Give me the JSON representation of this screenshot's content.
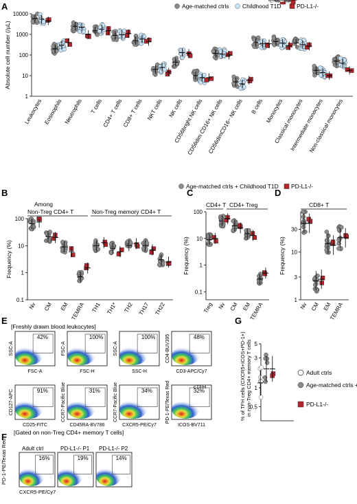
{
  "colors": {
    "ctrl": "#8c8c8c",
    "t1d": "#c6e2f6",
    "pdl1": "#b4242a",
    "adult": "#ffffff"
  },
  "panel_labels": {
    "A": "A",
    "B": "B",
    "C": "C",
    "D": "D",
    "E": "E",
    "F": "F",
    "G": "G"
  },
  "legendA": {
    "ctrl": "Age-matched ctrls",
    "t1d": "Childhood T1D",
    "pdl1": "PD-L1-/-"
  },
  "legendBCD": {
    "combined": "Age-matched ctrls + Childhood T1D",
    "pdl1": "PD-L1-/-"
  },
  "chart_data": [
    {
      "panel": "A",
      "type": "scatter",
      "scale": "log",
      "ylim": [
        1,
        10000
      ],
      "ylabel": "Absolute cell number (/µL)",
      "yticks": [
        "1",
        "10",
        "100",
        "1000",
        "10000"
      ],
      "categories": [
        "Leukocytes",
        "Eosinophils",
        "Neutrophils",
        "T cells",
        "CD4+ T cells",
        "CD8+ T cells",
        "NKT cells",
        "NK cells",
        "CD56bright NK cells",
        "CD56dim CD16+ NK cells",
        "CD56dimCD16− NK cells",
        "B cells",
        "Monocytes",
        "Classical monocytes",
        "Intermediate monocytes",
        "Non-classical monocytes"
      ],
      "series": [
        {
          "name": "Age-matched ctrls",
          "values": [
            6000,
            200,
            2500,
            1500,
            900,
            500,
            20,
            45,
            10,
            120,
            5,
            400,
            450,
            380,
            18,
            50
          ]
        },
        {
          "name": "Childhood T1D",
          "values": [
            5500,
            300,
            2200,
            1800,
            950,
            600,
            25,
            130,
            8,
            110,
            4,
            350,
            380,
            320,
            14,
            40
          ]
        },
        {
          "name": "PD-L1-/-",
          "values": [
            4500,
            400,
            1000,
            1500,
            1100,
            450,
            15,
            120,
            8,
            100,
            6,
            350,
            280,
            270,
            10,
            18
          ]
        }
      ]
    },
    {
      "panel": "B",
      "type": "scatter",
      "scale": "log",
      "ylim": [
        0.1,
        100
      ],
      "ylabel": "Frequency (%)",
      "yticks": [
        "0.1",
        "1",
        "10",
        "100"
      ],
      "group_titles": [
        "Among",
        "Non-Treg CD4+ T",
        "Non-Treg memory CD4+ T"
      ],
      "categories": [
        "Nv",
        "CM",
        "EM",
        "TEMRA",
        "TH1",
        "TH1*",
        "TH2",
        "TH17",
        "TH22"
      ],
      "series": [
        {
          "name": "Age-matched ctrls + Childhood T1D",
          "values": [
            65,
            22,
            9,
            0.7,
            10,
            8,
            10,
            10,
            3
          ]
        },
        {
          "name": "PD-L1-/-",
          "values": [
            75,
            20,
            6,
            1.5,
            13,
            6,
            12,
            7,
            2.5
          ]
        }
      ]
    },
    {
      "panel": "C",
      "type": "scatter",
      "scale": "log",
      "ylim": [
        0.05,
        100
      ],
      "ylabel": "Frequency (%)",
      "yticks": [
        "0.1",
        "1",
        "10",
        "100"
      ],
      "group_titles": [
        "CD4+ T",
        "CD4+ Treg"
      ],
      "categories": [
        "Treg",
        "Nv",
        "CM",
        "EM",
        "TEMRA"
      ],
      "series": [
        {
          "name": "Age-matched ctrls + Childhood T1D",
          "values": [
            9,
            45,
            30,
            15,
            0.3
          ]
        },
        {
          "name": "PD-L1-/-",
          "values": [
            10,
            55,
            25,
            13,
            0.5
          ]
        }
      ]
    },
    {
      "panel": "D",
      "type": "scatter",
      "scale": "log",
      "ylim": [
        1,
        70
      ],
      "ylabel": "Frequency (%)",
      "yticks": [
        "1",
        "3",
        "10",
        "30"
      ],
      "group_titles": [
        "CD8+ T"
      ],
      "categories": [
        "Nv",
        "CM",
        "EM",
        "TEMRA"
      ],
      "series": [
        {
          "name": "Age-matched ctrls + Childhood T1D",
          "values": [
            40,
            2.5,
            15,
            20
          ]
        },
        {
          "name": "PD-L1-/-",
          "values": [
            40,
            2.7,
            14,
            20
          ]
        }
      ]
    },
    {
      "panel": "G",
      "type": "scatter",
      "scale": "log",
      "ylim": [
        0.3,
        5
      ],
      "ylabel": "% of TFH cells (CXCR5+ICOS+PD-1+) in non-Treg CD4+ memory T cells",
      "yticks": [
        "0.5",
        "1",
        "3",
        "5"
      ],
      "categories": [
        "Adult ctrls",
        "Age-matched ctrls + Childhood T1D",
        "PD-L1-/-"
      ],
      "series": [
        {
          "name": "Adult ctrls",
          "values": [
            1.2
          ]
        },
        {
          "name": "Age-matched ctrls + Childhood T1D",
          "values": [
            2.0
          ]
        },
        {
          "name": "PD-L1-/-",
          "values": [
            2.0
          ]
        }
      ]
    }
  ],
  "panelB": {
    "group_title1": "Among",
    "group_title2": "Non-Treg CD4+ T",
    "group_title3": "Non-Treg memory CD4+ T"
  },
  "panelC": {
    "group_title1": "CD4+ T",
    "group_title2": "CD4+ Treg"
  },
  "panelD": {
    "group_title1": "CD8+ T"
  },
  "panelE": {
    "header": "[Freshly drawn blood leukocytes]",
    "footer": "[Gated on non-Treg CD4+ memory T cells]",
    "plots": [
      {
        "x": "FSC-A",
        "y": "SSC-A",
        "pct": "42%"
      },
      {
        "x": "FSC-H",
        "y": "FSC-A",
        "pct": "100%"
      },
      {
        "x": "SSC-H",
        "y": "SSC-A",
        "pct": "100%"
      },
      {
        "x": "CD3-APC/Cy7",
        "y": "CD4-BUV395",
        "pct": "48%"
      },
      {
        "x": "CD25-FITC",
        "y": "CD127-APC",
        "pct": "91%"
      },
      {
        "x": "CD45RA-BV786",
        "y": "CCR7-Pacific Blue",
        "pct": "31%"
      },
      {
        "x": "CXCR5-PE/Cy7",
        "y": "CCR7-Pacific Blue",
        "pct": "34%"
      },
      {
        "x": "ICOS-BV711",
        "y": "PD-1-PE/Texas Red",
        "pct": "32%",
        "gate": "cTFH"
      }
    ]
  },
  "panelF": {
    "y": "PD-1-PE/Texas Red",
    "x": "CXCR5-PE/Cy7",
    "plots": [
      {
        "title": "Adult ctrl",
        "pct": "16%"
      },
      {
        "title": "PD-L1-/- P1",
        "pct": "19%"
      },
      {
        "title": "PD-L1-/- P2",
        "pct": "14%"
      }
    ]
  },
  "panelG": {
    "legend": [
      "Adult ctrls",
      "Age-matched ctrls + Childhood T1D",
      "PD-L1-/-"
    ],
    "ylabel1": "% of TFH cells (CXCR5+ICOS+PD-1+)",
    "ylabel2": "in non-Treg CD4+ memory T cells"
  }
}
